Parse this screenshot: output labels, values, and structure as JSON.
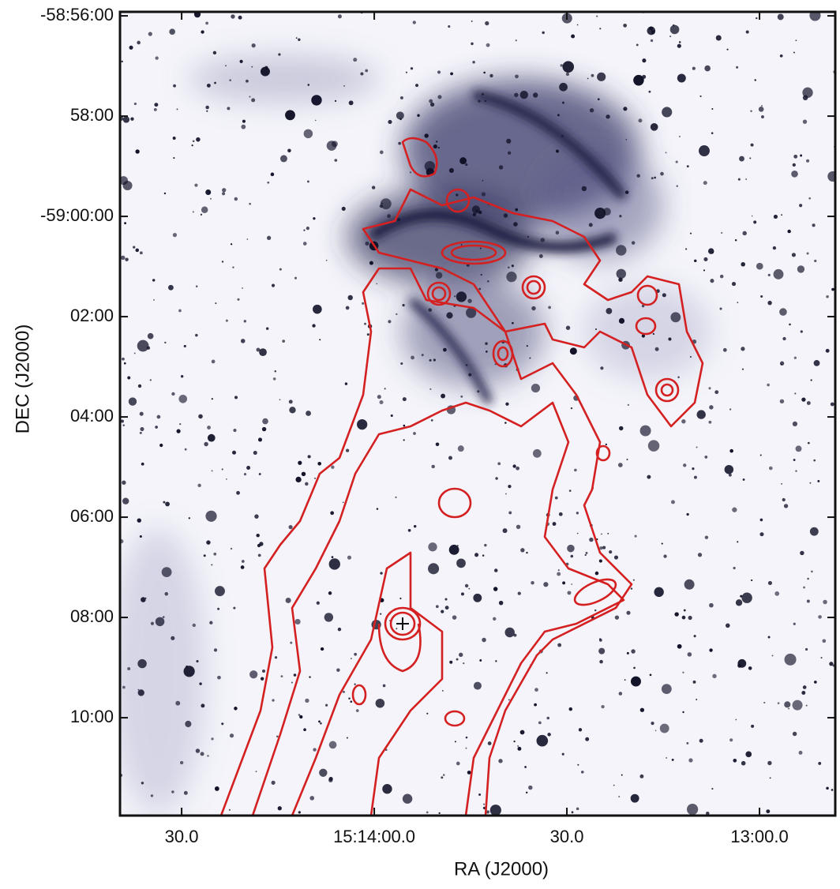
{
  "chart_data": {
    "type": "image",
    "xlabel": "RA (J2000)",
    "ylabel": "DEC (J2000)",
    "xlim": [
      879.6,
      768.2
    ],
    "ylim": [
      -59.1992,
      -58.932
    ],
    "xticks": [
      {
        "value": 870,
        "label": "30.0"
      },
      {
        "value": 840,
        "label": "15:14:00.0"
      },
      {
        "value": 810,
        "label": "30.0"
      },
      {
        "value": 780,
        "label": "13:00.0"
      }
    ],
    "yticks": [
      {
        "value": -58.93333,
        "label": "-58:56:00"
      },
      {
        "value": -58.96667,
        "label": "58:00"
      },
      {
        "value": -59.0,
        "label": "-59:00:00"
      },
      {
        "value": -59.03333,
        "label": "02:00"
      },
      {
        "value": -59.06667,
        "label": "04:00"
      },
      {
        "value": -59.1,
        "label": "06:00"
      },
      {
        "value": -59.13333,
        "label": "08:00"
      },
      {
        "value": -59.16667,
        "label": "10:00"
      }
    ]
  }
}
